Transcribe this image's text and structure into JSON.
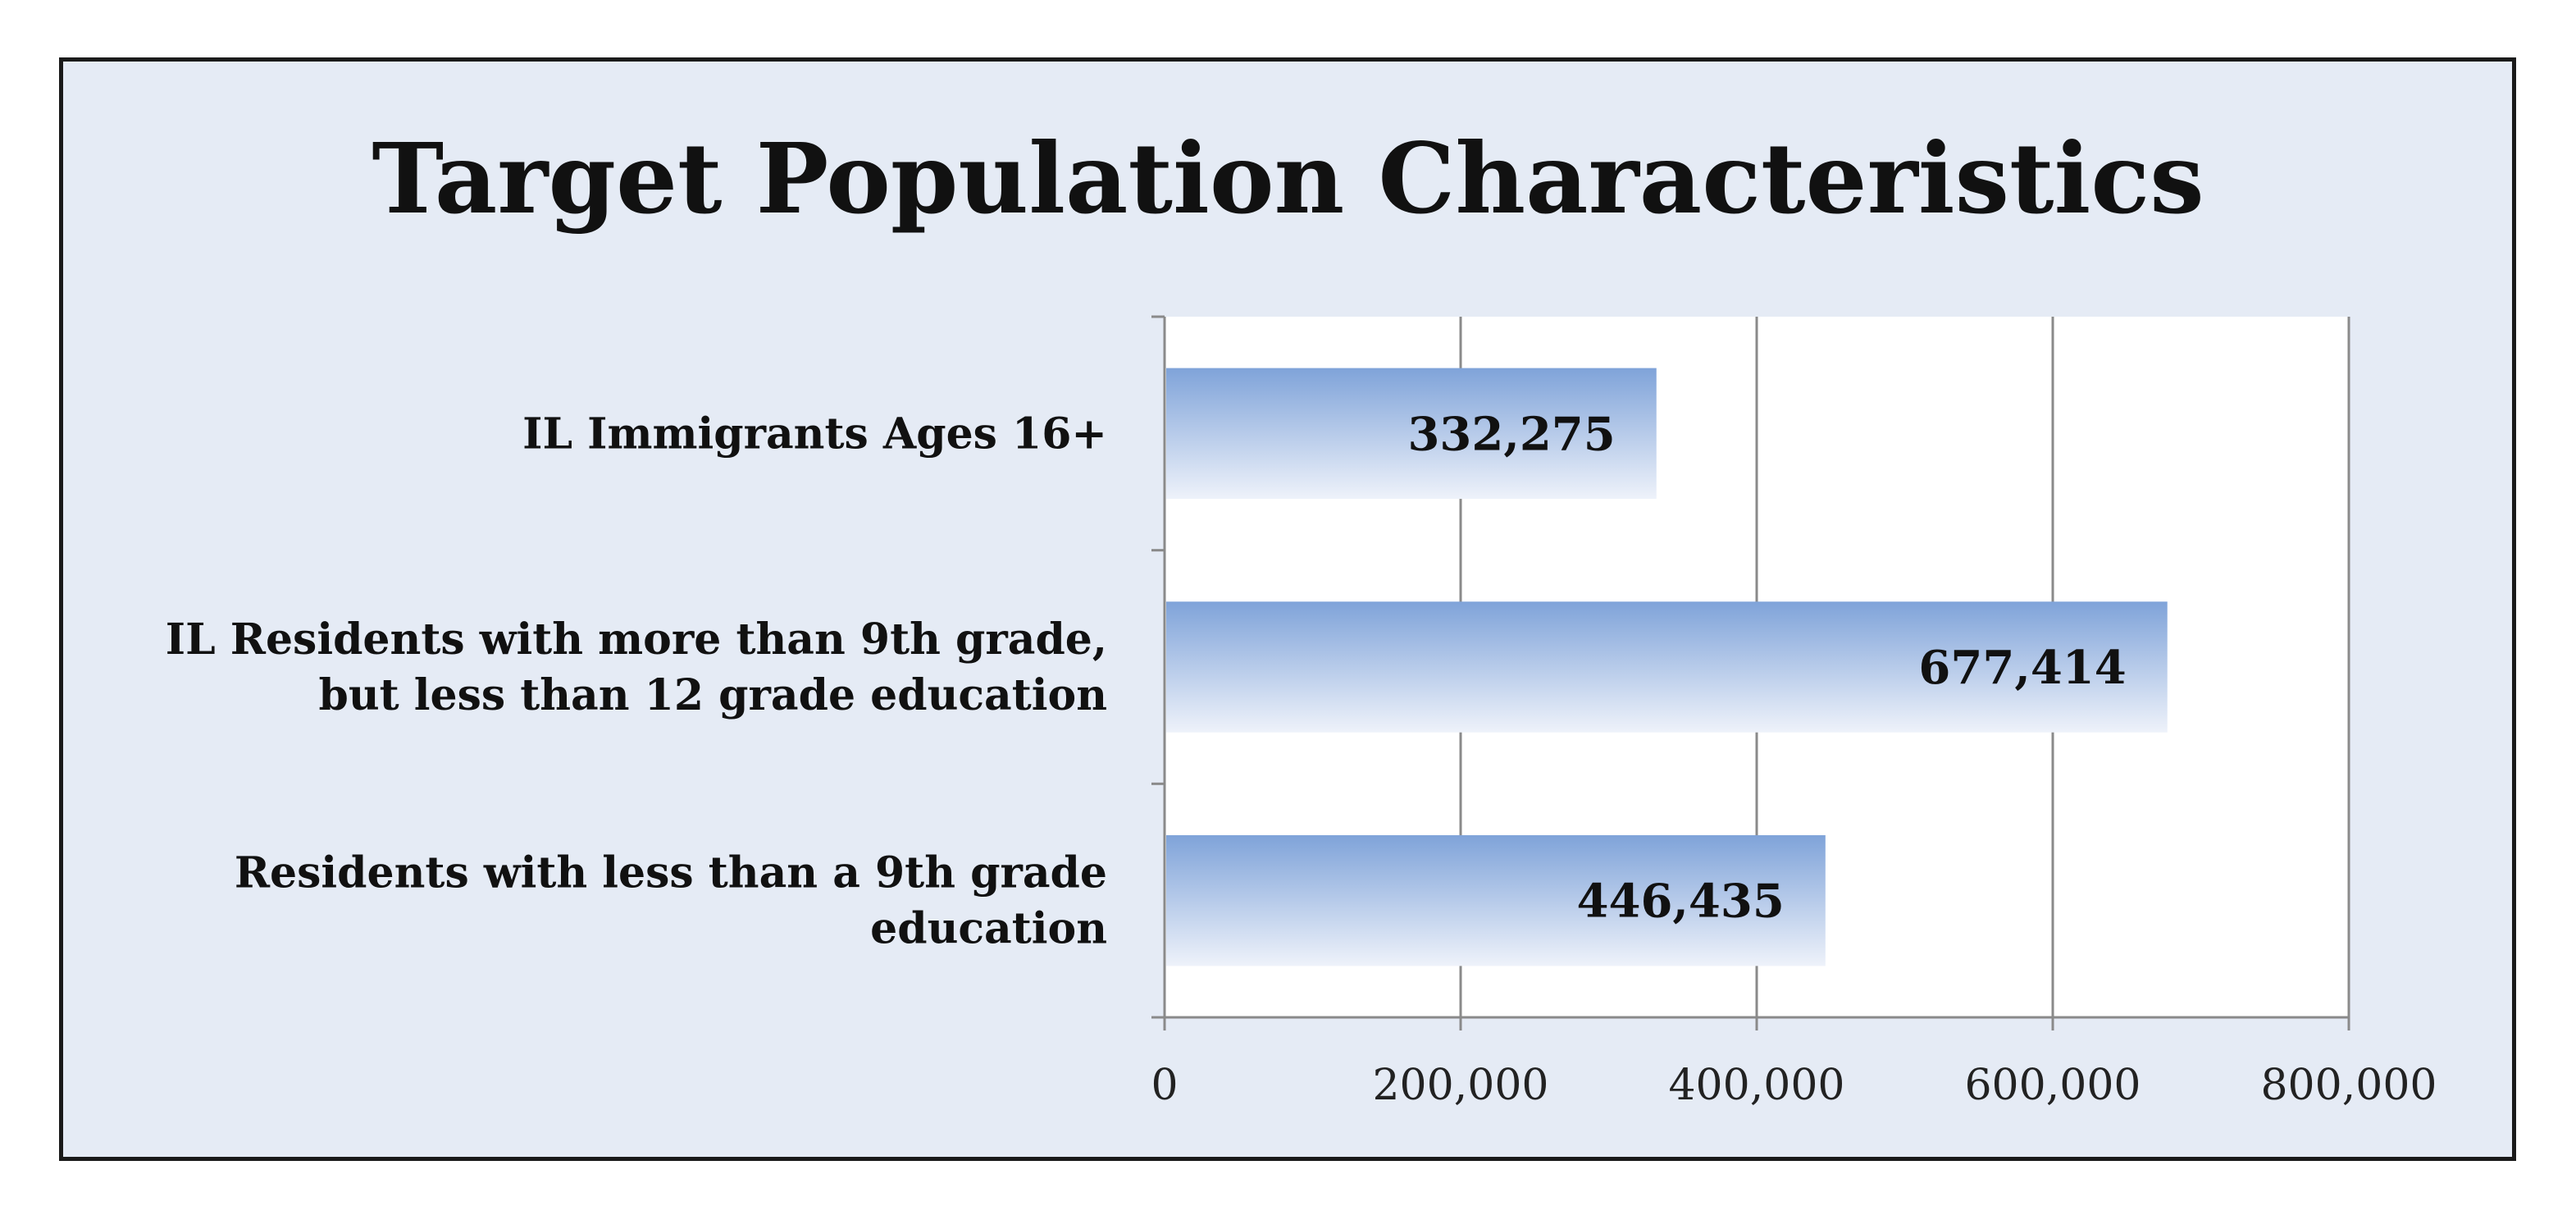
{
  "chart_data": {
    "type": "bar",
    "orientation": "horizontal",
    "title": "Target Population Characteristics",
    "categories": [
      "IL Immigrants Ages 16+",
      "IL Residents with more than 9th grade, but less than 12 grade education",
      "Residents with less than a 9th grade education"
    ],
    "category_label_lines": [
      [
        "IL Immigrants Ages 16+"
      ],
      [
        "IL Residents with more than 9th grade,",
        "but less than 12 grade education"
      ],
      [
        "Residents with less than a 9th grade",
        "education"
      ]
    ],
    "values": [
      332275,
      677414,
      446435
    ],
    "data_labels": [
      "332,275",
      "677,414",
      "446,435"
    ],
    "xlim": [
      0,
      800000
    ],
    "x_ticks": [
      0,
      200000,
      400000,
      600000,
      800000
    ],
    "x_tick_labels": [
      "0",
      "200,000",
      "400,000",
      "600,000",
      "800,000"
    ],
    "grid": "vertical",
    "legend": "none",
    "colors": {
      "bar_top": "#7fa3d9",
      "bar_bottom": "#eef2fa",
      "frame_background": "#e5ebf5",
      "plot_background": "#ffffff",
      "gridline": "#8a8a8a"
    }
  }
}
